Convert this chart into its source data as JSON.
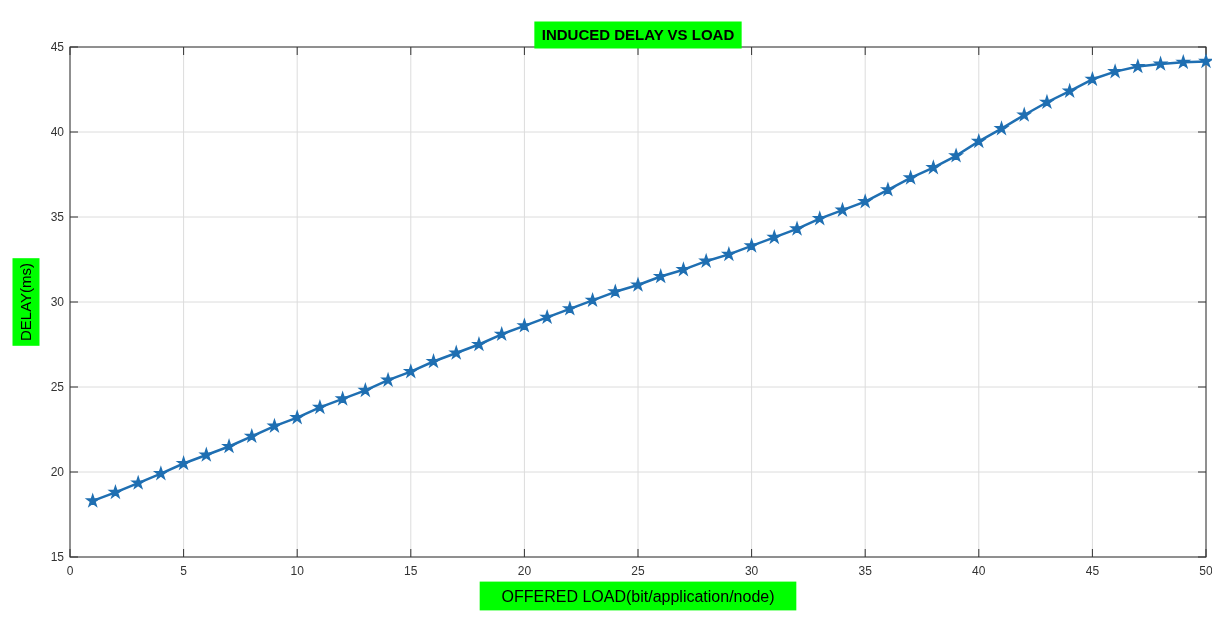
{
  "chart_data": {
    "type": "line",
    "title": "INDUCED DELAY VS LOAD",
    "xlabel": "OFFERED LOAD(bit/application/node)",
    "ylabel": "DELAY(ms)",
    "x": [
      1,
      2,
      3,
      4,
      5,
      6,
      7,
      8,
      9,
      10,
      11,
      12,
      13,
      14,
      15,
      16,
      17,
      18,
      19,
      20,
      21,
      22,
      23,
      24,
      25,
      26,
      27,
      28,
      29,
      30,
      31,
      32,
      33,
      34,
      35,
      36,
      37,
      38,
      39,
      40,
      41,
      42,
      43,
      44,
      45,
      46,
      47,
      48,
      49,
      50
    ],
    "series": [
      {
        "color": "#1f6fb2",
        "values": [
          18.3,
          18.8,
          19.35,
          19.9,
          20.5,
          21.0,
          21.5,
          22.1,
          22.7,
          23.2,
          23.8,
          24.3,
          24.8,
          25.4,
          25.9,
          26.5,
          27.0,
          27.5,
          28.1,
          28.6,
          29.1,
          29.6,
          30.1,
          30.6,
          31.0,
          31.5,
          31.9,
          32.4,
          32.8,
          33.3,
          33.8,
          34.3,
          34.9,
          35.4,
          35.9,
          36.6,
          37.3,
          37.9,
          38.6,
          39.45,
          40.2,
          41.0,
          41.75,
          42.4,
          43.1,
          43.55,
          43.85,
          44.0,
          44.1,
          44.15
        ]
      }
    ],
    "xlim": [
      0,
      50
    ],
    "xticks": [
      0,
      5,
      10,
      15,
      20,
      25,
      30,
      35,
      40,
      45,
      50
    ],
    "ylim": [
      15,
      45
    ],
    "yticks": [
      15,
      20,
      25,
      30,
      35,
      40,
      45
    ],
    "grid": true,
    "marker": "star",
    "line_style": "solid"
  }
}
